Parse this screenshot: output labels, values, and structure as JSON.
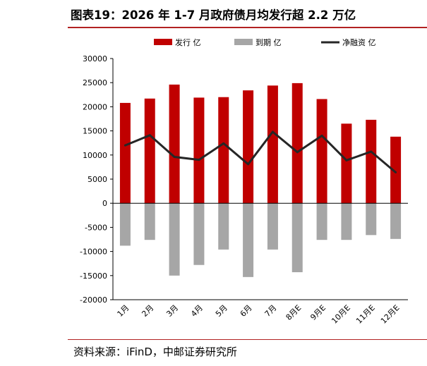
{
  "title": "图表19：2026 年 1-7 月政府债月均发行超 2.2 万亿",
  "source": "资料来源：iFinD，中邮证券研究所",
  "chart_data": {
    "type": "bar",
    "categories": [
      "1月",
      "2月",
      "3月",
      "4月",
      "5月",
      "6月",
      "7月",
      "8月E",
      "9月E",
      "10月E",
      "11月E",
      "12月E"
    ],
    "series": [
      {
        "name": "发行 亿",
        "type": "bar",
        "color": "#c00000",
        "values": [
          20800,
          21700,
          24600,
          21900,
          22000,
          23400,
          24400,
          24900,
          21600,
          16500,
          17300,
          13800
        ]
      },
      {
        "name": "到期 亿",
        "type": "bar",
        "color": "#a6a6a6",
        "values": [
          -8800,
          -7600,
          -15000,
          -12800,
          -9600,
          -15300,
          -9600,
          -14300,
          -7600,
          -7600,
          -6600,
          -7400
        ]
      },
      {
        "name": "净融资 亿",
        "type": "line",
        "color": "#262626",
        "values": [
          12000,
          14100,
          9600,
          9000,
          12400,
          8100,
          14800,
          10600,
          14000,
          8900,
          10700,
          6400
        ]
      }
    ],
    "yticks": [
      "30000",
      "25000",
      "20000",
      "15000",
      "10000",
      "5000",
      "0",
      "-5000",
      "-10000",
      "-15000",
      "-20000"
    ],
    "ylim": [
      -20000,
      30000
    ],
    "legend_position": "top"
  }
}
